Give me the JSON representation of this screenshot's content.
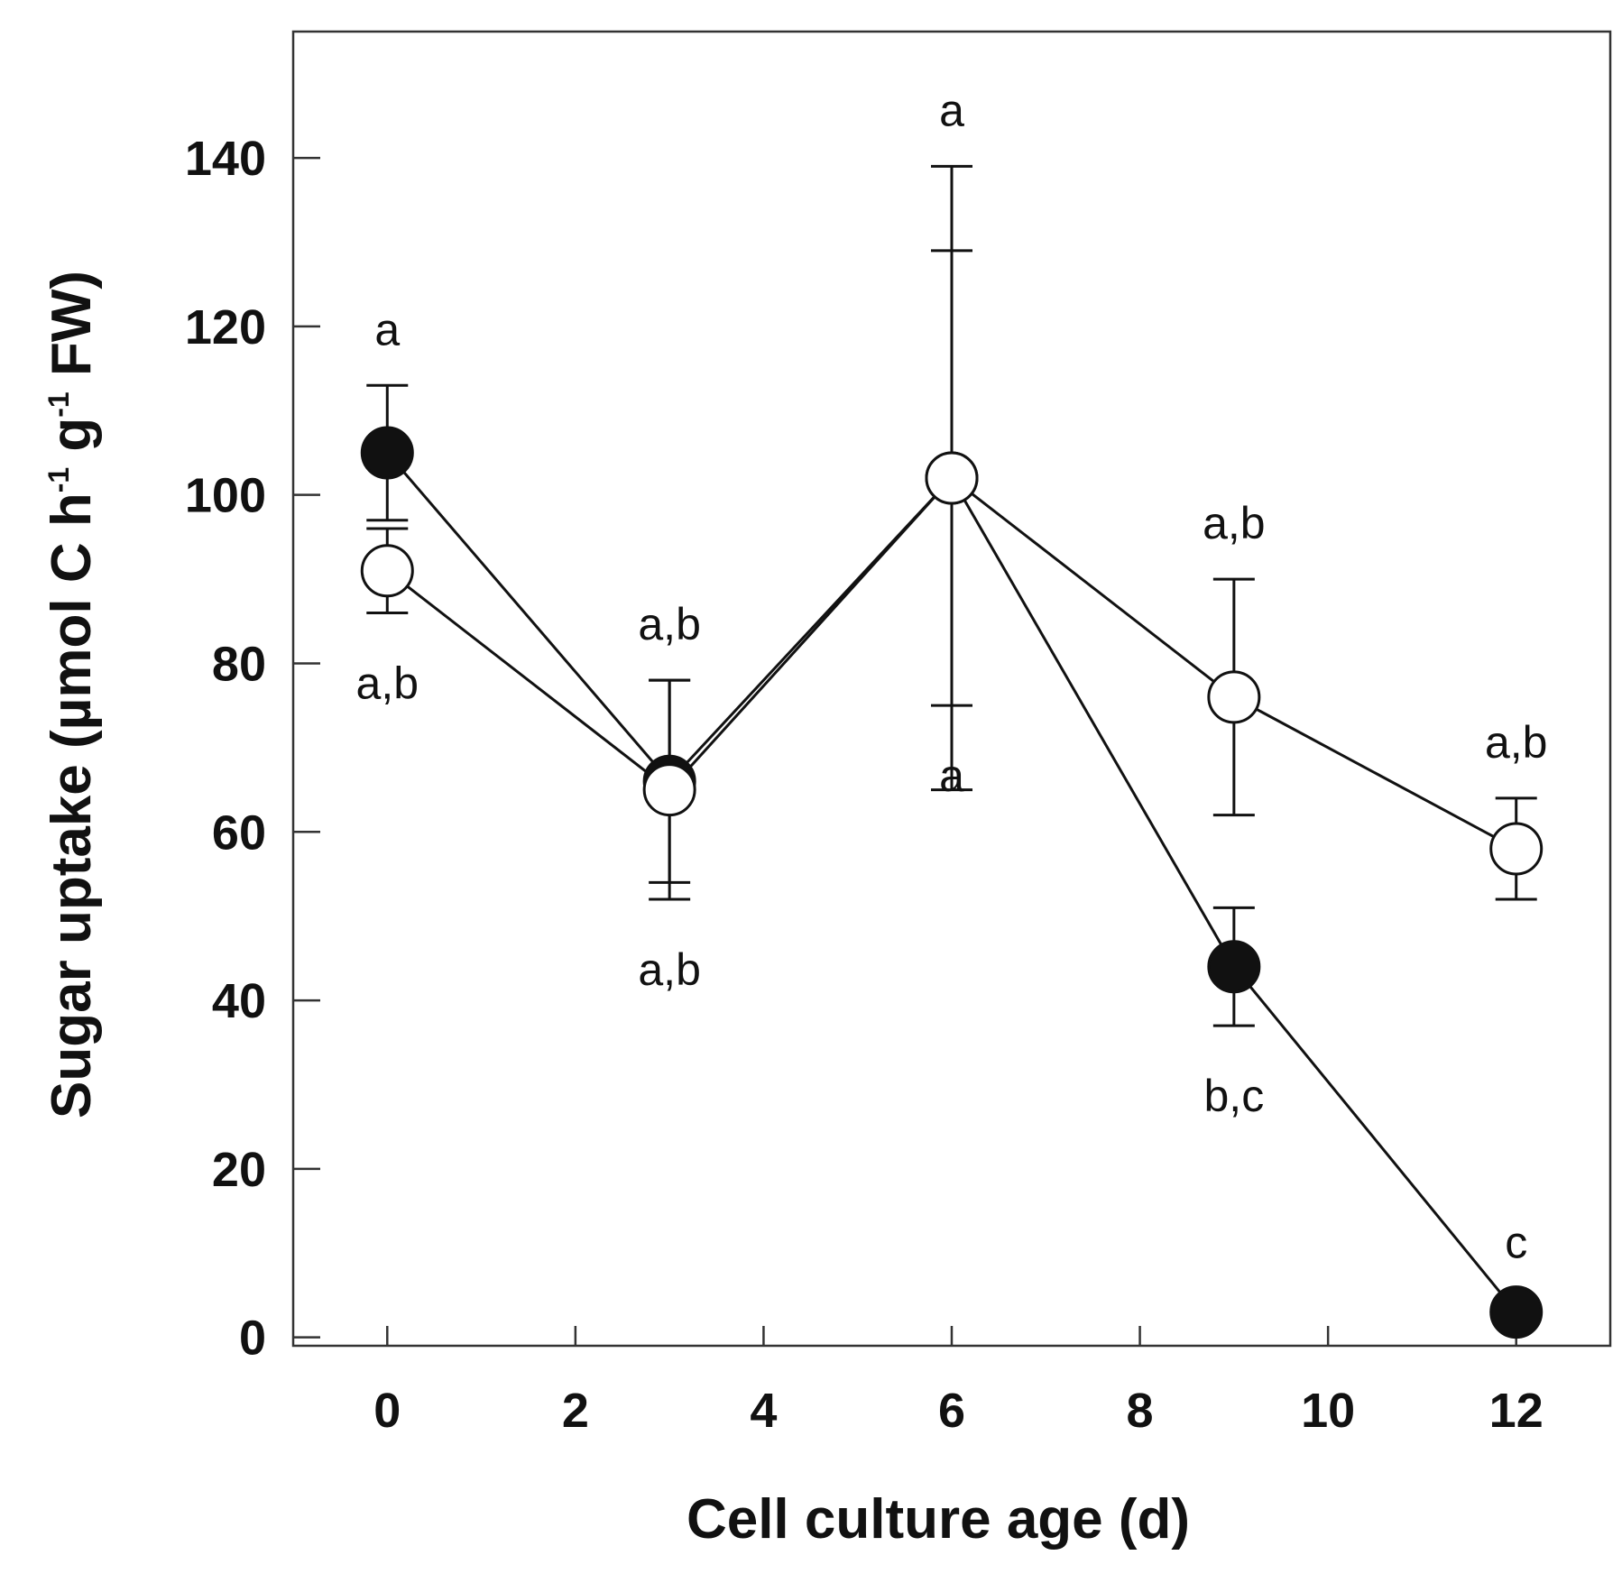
{
  "chart_data": {
    "type": "line",
    "xlabel": "Cell culture age (d)",
    "ylabel": {
      "prefix": "Sugar uptake (µmol C h",
      "sup1": "-1",
      "mid": " g",
      "sup2": "-1",
      "suffix": " FW)"
    },
    "xlim": [
      -1,
      13
    ],
    "ylim": [
      -1,
      155
    ],
    "xticks": [
      0,
      2,
      4,
      6,
      8,
      10,
      12
    ],
    "yticks": [
      0,
      20,
      40,
      60,
      80,
      100,
      120,
      140
    ],
    "series": [
      {
        "name": "filled",
        "marker": "filled-circle",
        "color": "#111111",
        "x": [
          0,
          3,
          6,
          9,
          12
        ],
        "y": [
          105,
          66,
          102,
          44,
          3
        ],
        "err": [
          8,
          12,
          27,
          7,
          0
        ],
        "labels": [
          "a",
          "a,b",
          "a",
          "b,c",
          "c"
        ]
      },
      {
        "name": "open",
        "marker": "open-circle",
        "color": "#111111",
        "x": [
          0,
          3,
          6,
          9,
          12
        ],
        "y": [
          91,
          65,
          102,
          76,
          58
        ],
        "err": [
          5,
          13,
          37,
          14,
          6
        ],
        "labels": [
          "a,b",
          "a,b",
          "a",
          "a,b",
          "a,b"
        ]
      }
    ]
  }
}
